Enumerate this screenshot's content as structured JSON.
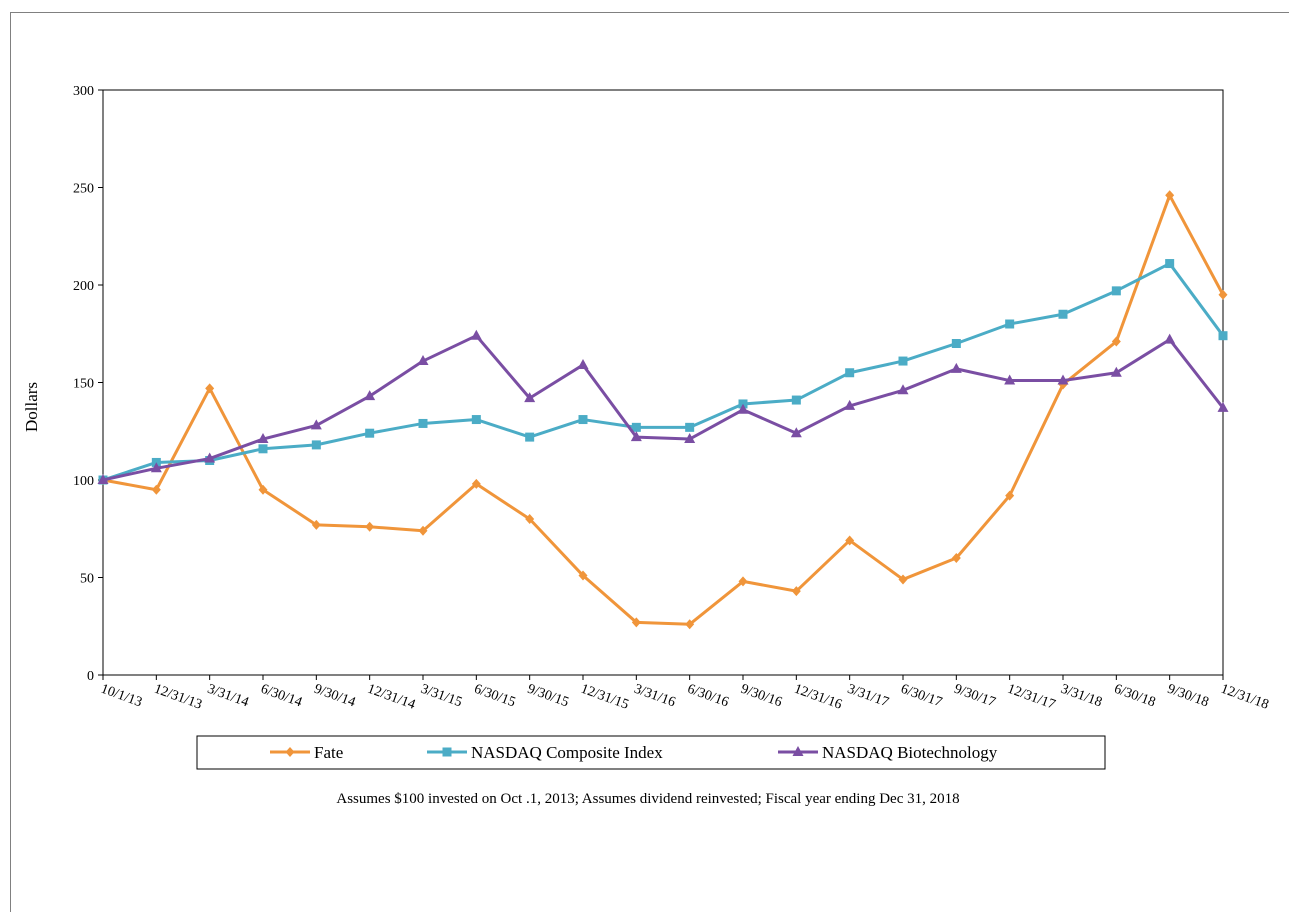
{
  "chart_data": {
    "type": "line",
    "title": "",
    "xlabel": "",
    "ylabel": "Dollars",
    "ylim": [
      0,
      300
    ],
    "yticks": [
      0,
      50,
      100,
      150,
      200,
      250,
      300
    ],
    "grid": false,
    "legend_position": "bottom",
    "categories": [
      "10/1/13",
      "12/31/13",
      "3/31/14",
      "6/30/14",
      "9/30/14",
      "12/31/14",
      "3/31/15",
      "6/30/15",
      "9/30/15",
      "12/31/15",
      "3/31/16",
      "6/30/16",
      "9/30/16",
      "12/31/16",
      "3/31/17",
      "6/30/17",
      "9/30/17",
      "12/31/17",
      "3/31/18",
      "6/30/18",
      "9/30/18",
      "12/31/18"
    ],
    "series": [
      {
        "name": "Fate",
        "color": "#F0953A",
        "marker": "diamond",
        "values": [
          100,
          95,
          147,
          95,
          77,
          76,
          74,
          98,
          80,
          51,
          27,
          26,
          48,
          43,
          69,
          49,
          60,
          92,
          149,
          171,
          246,
          195
        ]
      },
      {
        "name": "NASDAQ Composite Index",
        "color": "#4BACC6",
        "marker": "square",
        "values": [
          100,
          109,
          110,
          116,
          118,
          124,
          129,
          131,
          122,
          131,
          127,
          127,
          139,
          141,
          155,
          161,
          170,
          180,
          185,
          197,
          211,
          174
        ]
      },
      {
        "name": "NASDAQ Biotechnology",
        "color": "#7A4EA3",
        "marker": "triangle",
        "values": [
          100,
          106,
          111,
          121,
          128,
          143,
          161,
          174,
          142,
          159,
          122,
          121,
          136,
          124,
          138,
          146,
          157,
          151,
          151,
          155,
          172,
          137
        ]
      }
    ],
    "footnote": "Assumes $100 invested on Oct .1, 2013;  Assumes dividend reinvested; Fiscal year ending Dec 31, 2018"
  }
}
